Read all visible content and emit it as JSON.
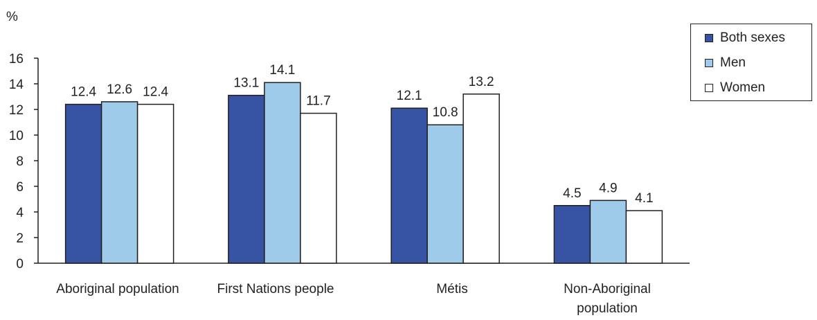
{
  "chart_data": {
    "type": "bar",
    "ylabel": "%",
    "ylim": [
      0,
      16
    ],
    "yticks": [
      0,
      2,
      4,
      6,
      8,
      10,
      12,
      14,
      16
    ],
    "categories": [
      [
        "Aboriginal population"
      ],
      [
        "First Nations people"
      ],
      [
        "Métis"
      ],
      [
        "Non-Aboriginal",
        "population"
      ]
    ],
    "series": [
      {
        "name": "Both sexes",
        "color": "#3653a4",
        "values": [
          12.4,
          13.1,
          12.1,
          4.5
        ]
      },
      {
        "name": "Men",
        "color": "#9ecbea",
        "values": [
          12.6,
          14.1,
          10.8,
          4.9
        ]
      },
      {
        "name": "Women",
        "color": "#ffffff",
        "values": [
          12.4,
          11.7,
          13.2,
          4.1
        ]
      }
    ],
    "grid": false,
    "legend_position": "top-right"
  }
}
